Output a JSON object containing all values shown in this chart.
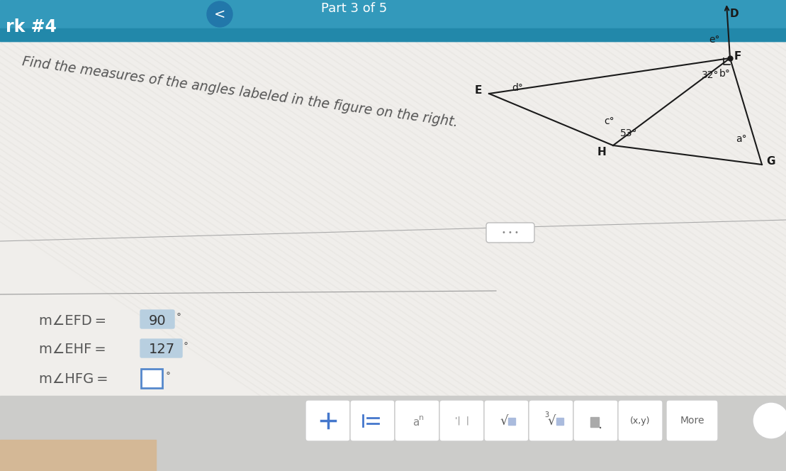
{
  "bg_color_outer": "#c8c8c4",
  "bg_color_teal": "#3399bb",
  "bg_color_white": "#f0eeeb",
  "bg_color_gray_stripe": "#dddbd8",
  "bg_color_toolbar": "#ccccca",
  "bg_color_tan": "#d4b896",
  "title_text": "rk #4",
  "part_text": "Part 3 of 5",
  "chevron": "<",
  "instruction_text": "Find the measures of the angles labeled in the figure on the right.",
  "eq1_label": "m∠EFD =",
  "eq1_value": "90",
  "eq2_label": "m∠EHF =",
  "eq2_value": "127",
  "eq3_label": "m∠HFG =",
  "more_text": "More",
  "angle_32": "32°",
  "angle_53": "53°",
  "label_a": "a°",
  "label_b": "b°",
  "label_c": "c°",
  "label_d": "d°",
  "label_e": "e°",
  "label_D": "D",
  "label_E": "E",
  "label_F": "F",
  "label_G": "G",
  "label_H": "H",
  "line_color": "#1a1a1a",
  "highlight_90": "#b8cfe0",
  "highlight_127": "#b8cfe0",
  "box_color": "#5588cc",
  "stripe_color": "#e8e8e2",
  "stripe_color2": "#d8d8d2"
}
